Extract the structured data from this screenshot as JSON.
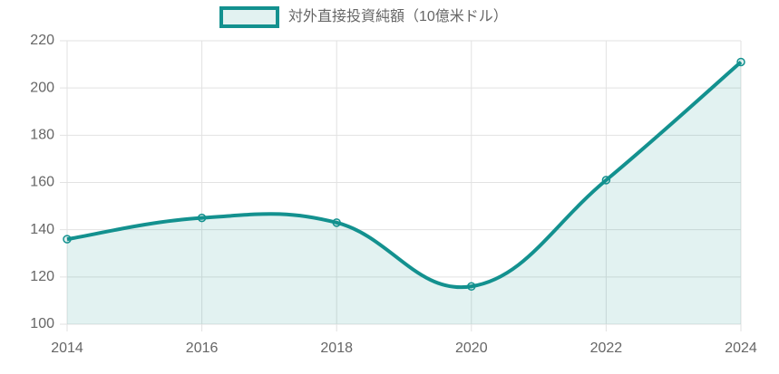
{
  "chart_data": {
    "type": "line",
    "x": [
      2014,
      2016,
      2018,
      2020,
      2022,
      2024
    ],
    "series": [
      {
        "name": "対外直接投資純額（10億米ドル）",
        "color": "#13918f",
        "values": [
          136,
          145,
          143,
          116,
          161,
          211
        ]
      }
    ],
    "xlim": [
      2014,
      2024
    ],
    "xticks": [
      2014,
      2016,
      2018,
      2020,
      2022,
      2024
    ],
    "ylim": [
      100,
      220
    ],
    "yticks": [
      100,
      120,
      140,
      160,
      180,
      200,
      220
    ],
    "grid": true,
    "fill": true,
    "legend": "top"
  }
}
